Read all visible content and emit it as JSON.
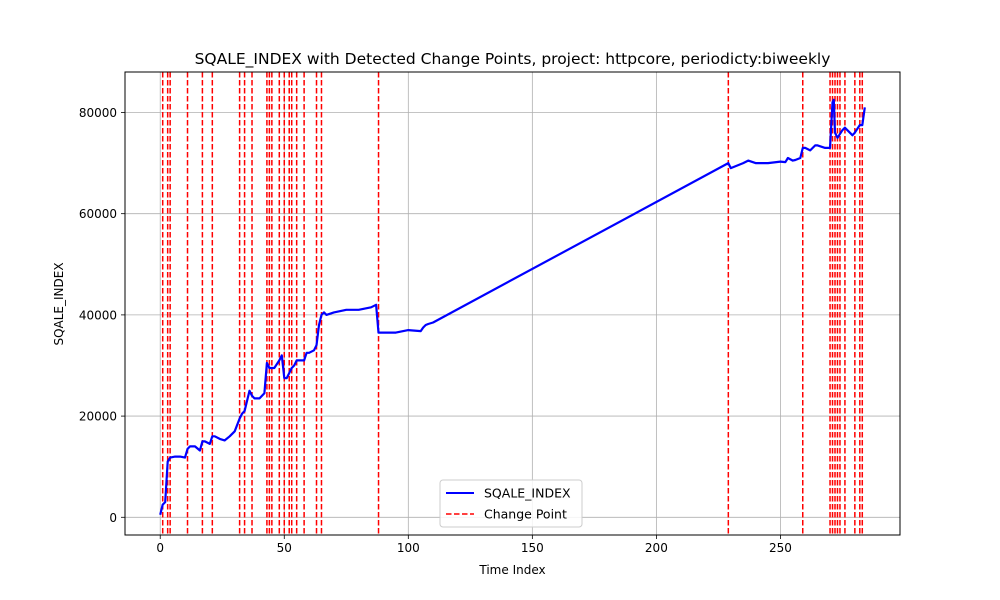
{
  "chart_data": {
    "type": "line",
    "title": "SQALE_INDEX with Detected Change Points, project: httpcore, periodicty:biweekly",
    "xlabel": "Time Index",
    "ylabel": "SQALE_INDEX",
    "xlim": [
      -14.2,
      298.2
    ],
    "ylim": [
      -3500,
      88000
    ],
    "xticks": [
      0,
      50,
      100,
      150,
      200,
      250
    ],
    "yticks": [
      0,
      20000,
      40000,
      60000,
      80000
    ],
    "xtick_labels": [
      "0",
      "50",
      "100",
      "150",
      "200",
      "250"
    ],
    "ytick_labels": [
      "0",
      "20000",
      "40000",
      "60000",
      "80000"
    ],
    "grid": true,
    "legend_position": "bottom-center",
    "series": [
      {
        "name": "SQALE_INDEX",
        "color": "#0000ff",
        "style": "solid",
        "x": [
          0,
          1,
          2,
          3,
          4,
          6,
          8,
          10,
          11,
          12,
          14,
          16,
          17,
          18,
          20,
          21,
          22,
          24,
          26,
          28,
          30,
          32,
          33,
          34,
          36,
          37,
          38,
          40,
          42,
          43,
          44,
          45,
          46,
          48,
          49,
          50,
          51,
          52,
          53,
          54,
          55,
          56,
          58,
          59,
          60,
          62,
          63,
          64,
          65,
          66,
          67,
          70,
          75,
          80,
          85,
          87,
          88,
          90,
          95,
          100,
          105,
          106,
          107,
          108,
          110,
          229,
          230,
          235,
          237,
          240,
          245,
          250,
          252,
          253,
          255,
          256,
          258,
          259,
          260,
          262,
          264,
          265,
          268,
          270,
          271,
          271.5,
          272,
          273,
          275,
          276,
          278,
          279,
          280,
          282,
          283,
          284
        ],
        "y": [
          500,
          2500,
          3000,
          11000,
          11800,
          12000,
          12000,
          11800,
          13500,
          14000,
          14000,
          13200,
          15000,
          15000,
          14500,
          16000,
          16000,
          15500,
          15200,
          16000,
          17000,
          19500,
          20500,
          21000,
          25000,
          24000,
          23500,
          23500,
          24500,
          30500,
          29500,
          29500,
          29500,
          31000,
          32000,
          27500,
          27500,
          28500,
          29500,
          30000,
          31000,
          31000,
          31000,
          32500,
          32500,
          33000,
          34000,
          38000,
          40000,
          40500,
          40000,
          40500,
          41000,
          41000,
          41500,
          42000,
          36500,
          36500,
          36500,
          37000,
          36800,
          37500,
          38000,
          38200,
          38500,
          70000,
          69000,
          70000,
          70500,
          70000,
          70000,
          70300,
          70200,
          71000,
          70500,
          70600,
          71000,
          73000,
          73000,
          72500,
          73500,
          73500,
          73000,
          73000,
          82000,
          82500,
          76000,
          75000,
          76500,
          77000,
          76000,
          75500,
          76000,
          77500,
          77500,
          81000
        ]
      },
      {
        "name": "Change Point",
        "color": "#ff0000",
        "style": "dashed"
      }
    ],
    "change_points": [
      1,
      3,
      4,
      11,
      17,
      21,
      32,
      34,
      37,
      43,
      44,
      45,
      48,
      50,
      52,
      53,
      55,
      58,
      63,
      65,
      88,
      229,
      259,
      270,
      271,
      272,
      273,
      274,
      276,
      280,
      282,
      283
    ]
  }
}
